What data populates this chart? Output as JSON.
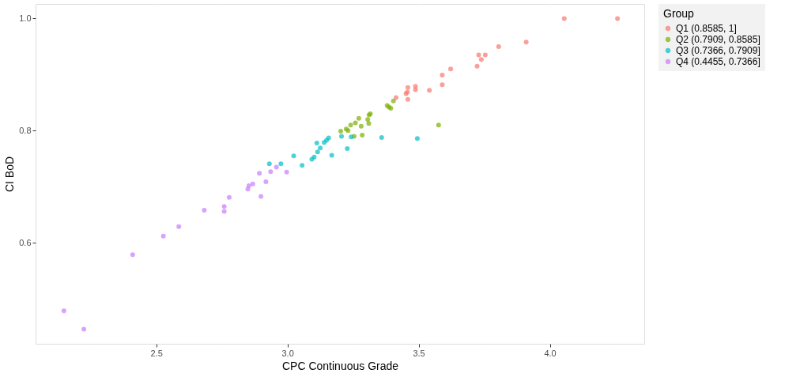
{
  "chart_data": {
    "type": "scatter",
    "xlabel": "CPC Continuous Grade",
    "ylabel": "CI BoD",
    "legend_title": "Group",
    "legend": "right",
    "grid": true,
    "marker": "circle",
    "xlim": [
      2.04,
      4.36
    ],
    "ylim": [
      0.42,
      1.026
    ],
    "xticks": [
      {
        "value": 2.25,
        "label": null
      },
      2.5,
      {
        "value": 2.75,
        "label": null
      },
      {
        "value": 3,
        "label": "3.0"
      },
      {
        "value": 3.25,
        "label": null
      },
      3.5,
      {
        "value": 3.75,
        "label": null
      },
      {
        "value": 4,
        "label": "4.0"
      },
      {
        "value": 4.25,
        "label": null
      }
    ],
    "yticks": [
      {
        "value": 0.5,
        "label": null
      },
      0.6,
      {
        "value": 0.7,
        "label": null
      },
      0.8,
      {
        "value": 0.9,
        "label": null
      },
      {
        "value": 1,
        "label": "1.0"
      }
    ],
    "series": [
      {
        "name": "Q1 (0.8585, 1]",
        "color": "#f8766d",
        "x": [
          3.414,
          3.459,
          3.452,
          3.457,
          3.459,
          3.488,
          3.488,
          3.541,
          3.59,
          3.59,
          3.622,
          3.723,
          3.729,
          3.754,
          3.739,
          3.805,
          3.91,
          4.055,
          4.258
        ],
        "values": [
          0.859,
          0.877,
          0.866,
          0.869,
          0.856,
          0.879,
          0.873,
          0.872,
          0.899,
          0.882,
          0.91,
          0.915,
          0.935,
          0.935,
          0.927,
          0.95,
          0.958,
          1.0,
          1.0
        ]
      },
      {
        "name": "Q2 (0.7909, 0.8585]",
        "color": "#7cae00",
        "x": [
          3.203,
          3.224,
          3.231,
          3.241,
          3.254,
          3.259,
          3.272,
          3.281,
          3.285,
          3.306,
          3.31,
          3.311,
          3.316,
          3.38,
          3.387,
          3.394,
          3.404,
          3.576
        ],
        "values": [
          0.799,
          0.803,
          0.8,
          0.81,
          0.79,
          0.814,
          0.822,
          0.808,
          0.792,
          0.82,
          0.813,
          0.828,
          0.83,
          0.845,
          0.842,
          0.84,
          0.853,
          0.81
        ]
      },
      {
        "name": "Q3 (0.7366, 0.7909]",
        "color": "#00bfc4",
        "x": [
          2.931,
          2.975,
          3.024,
          3.056,
          3.093,
          3.102,
          3.115,
          3.125,
          3.112,
          3.14,
          3.149,
          3.157,
          3.169,
          3.206,
          3.228,
          3.243,
          3.359,
          3.495
        ],
        "values": [
          0.741,
          0.741,
          0.755,
          0.738,
          0.749,
          0.753,
          0.762,
          0.769,
          0.778,
          0.779,
          0.783,
          0.787,
          0.756,
          0.79,
          0.768,
          0.789,
          0.788,
          0.786
        ]
      },
      {
        "name": "Q4 (0.4455, 0.7366]",
        "color": "#c77cff",
        "x": [
          2.148,
          2.224,
          2.41,
          2.527,
          2.586,
          2.683,
          2.759,
          2.759,
          2.778,
          2.849,
          2.853,
          2.868,
          2.899,
          2.918,
          2.893,
          2.936,
          2.958,
          2.997
        ],
        "values": [
          0.479,
          0.446,
          0.579,
          0.612,
          0.629,
          0.658,
          0.665,
          0.656,
          0.681,
          0.696,
          0.702,
          0.705,
          0.683,
          0.709,
          0.724,
          0.727,
          0.735,
          0.726
        ]
      }
    ]
  }
}
